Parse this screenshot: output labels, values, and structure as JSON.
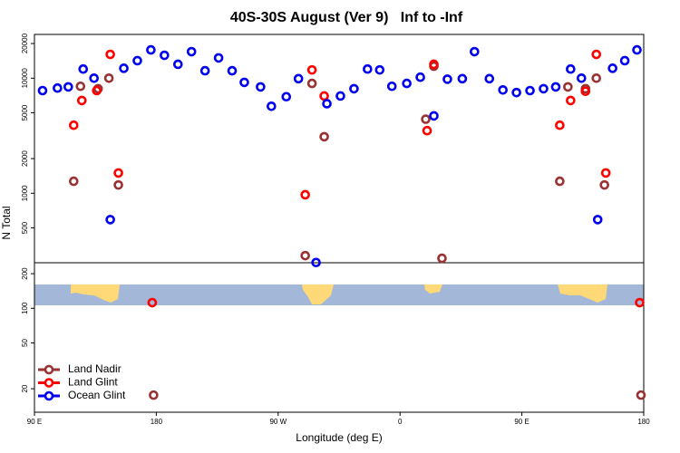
{
  "chart_data": {
    "type": "scatter",
    "title": "40S-30S August (Ver 9)   Inf to -Inf",
    "xlabel": "Longitude (deg E)",
    "ylabel": "N Total",
    "log_y": true,
    "legend": "lower left",
    "xlim": [
      90,
      540
    ],
    "xticks": [
      {
        "value": 90,
        "label": "90 E"
      },
      180,
      {
        "value": 270,
        "label": "90 W"
      },
      {
        "value": 360,
        "label": "0"
      },
      {
        "value": 450,
        "label": "90 E"
      },
      {
        "value": 540,
        "label": "180"
      }
    ],
    "ylim": [
      12.5,
      24000
    ],
    "yticks": [
      20,
      50,
      100,
      200,
      500,
      1000,
      2000,
      5000,
      10000,
      20000
    ],
    "series": [
      {
        "name": "Land Nadir",
        "color": "#993333",
        "x": [
          119,
          124,
          137,
          145,
          152,
          178,
          290,
          295,
          304,
          379,
          385,
          391,
          478,
          484,
          497,
          505,
          511,
          538
        ],
        "values": [
          1270,
          8500,
          8100,
          10000,
          1180,
          17.6,
          287,
          9000,
          3100,
          4400,
          12700,
          272,
          1270,
          8400,
          8100,
          10000,
          1180,
          17.6
        ]
      },
      {
        "name": "Land Glint",
        "color": "#ff0000",
        "x": [
          119,
          125,
          136,
          146,
          152,
          177,
          290,
          295,
          304,
          380,
          385,
          478,
          486,
          497,
          505,
          512,
          537
        ],
        "values": [
          3900,
          6400,
          7800,
          16100,
          1500,
          112,
          970,
          11800,
          7000,
          3500,
          13200,
          3900,
          6400,
          7700,
          16100,
          1500,
          112
        ]
      },
      {
        "name": "Ocean Glint",
        "color": "#0000ee",
        "x": [
          96,
          107,
          115,
          126,
          134,
          146,
          156,
          166,
          176,
          186,
          196,
          206,
          216,
          226,
          236,
          245,
          257,
          265,
          276,
          285,
          298,
          306,
          316,
          326,
          336,
          345,
          354,
          365,
          375,
          385,
          395,
          406,
          415,
          426,
          436,
          446,
          456,
          466,
          475,
          486,
          494,
          506,
          517,
          526,
          535
        ],
        "values": [
          7800,
          8200,
          8400,
          12000,
          10000,
          590,
          12200,
          14200,
          17600,
          15800,
          13200,
          17000,
          11600,
          15000,
          11600,
          9200,
          8400,
          5700,
          6900,
          9900,
          250,
          6000,
          7000,
          8100,
          12000,
          11800,
          8500,
          9000,
          10200,
          4700,
          9800,
          9900,
          17000,
          9900,
          7900,
          7500,
          7800,
          8100,
          8400,
          12000,
          10000,
          590,
          12200,
          14200,
          17600
        ]
      }
    ]
  }
}
